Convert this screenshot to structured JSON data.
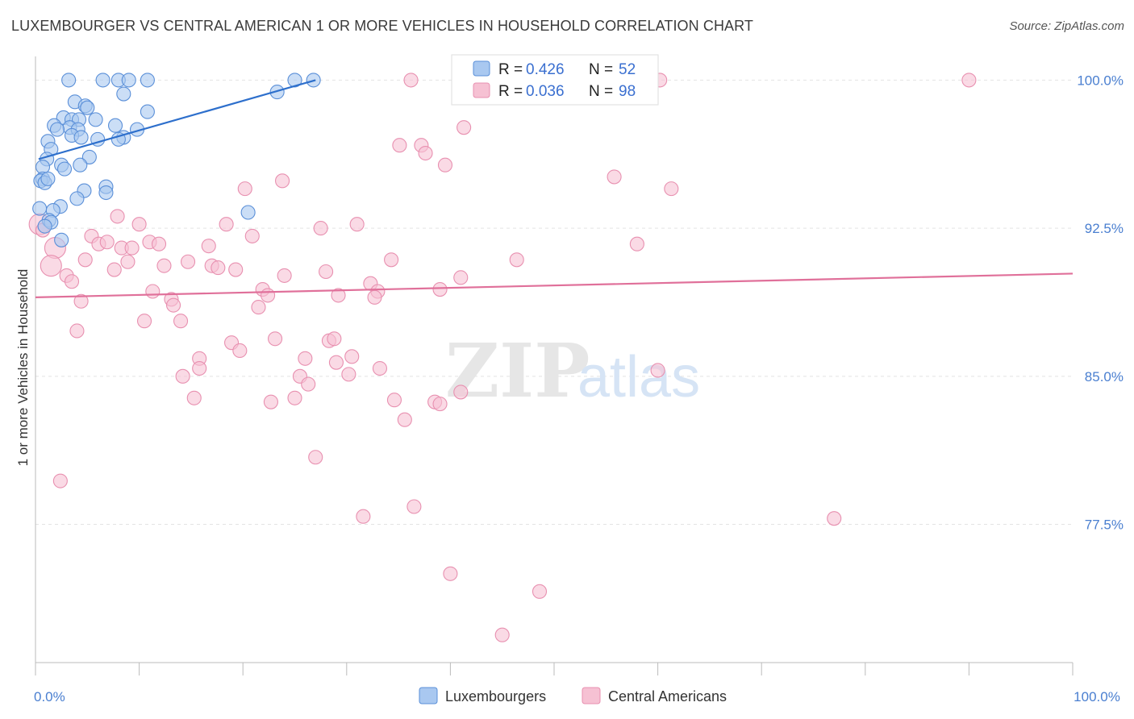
{
  "title": "LUXEMBOURGER VS CENTRAL AMERICAN 1 OR MORE VEHICLES IN HOUSEHOLD CORRELATION CHART",
  "source": "Source: ZipAtlas.com",
  "watermark": {
    "zip": "ZIP",
    "atlas": "atlas"
  },
  "colors": {
    "blue_fill": "#a9c8f0",
    "blue_stroke": "#5a8fd8",
    "blue_line": "#2d6fcc",
    "pink_fill": "#f6c1d3",
    "pink_stroke": "#e890b0",
    "pink_line": "#e0709a",
    "tick_text": "#4a7fd0",
    "grid": "#e4e4e4"
  },
  "legend": {
    "rows": [
      {
        "r_label": "R =",
        "r_value": "0.426",
        "n_label": "N =",
        "n_value": "52",
        "series": "Luxembourgers"
      },
      {
        "r_label": "R =",
        "r_value": "0.036",
        "n_label": "N =",
        "n_value": "98",
        "series": "Central Americans"
      }
    ]
  },
  "chart_data": {
    "type": "scatter",
    "title": "LUXEMBOURGER VS CENTRAL AMERICAN 1 OR MORE VEHICLES IN HOUSEHOLD CORRELATION CHART",
    "xlabel": "",
    "ylabel": "1 or more Vehicles in Household",
    "xlim": [
      0,
      100
    ],
    "ylim": [
      70.5,
      101.2
    ],
    "x_tick_labels": [
      {
        "value": 0,
        "label": "0.0%"
      },
      {
        "value": 100,
        "label": "100.0%"
      }
    ],
    "x_minor_ticks": [
      0,
      10,
      20,
      30,
      40,
      50,
      60,
      70,
      80,
      90,
      100
    ],
    "y_ticks": [
      {
        "value": 100,
        "label": "100.0%"
      },
      {
        "value": 92.5,
        "label": "92.5%"
      },
      {
        "value": 85,
        "label": "85.0%"
      },
      {
        "value": 77.5,
        "label": "77.5%"
      }
    ],
    "grid": true,
    "legend_position": "top-center",
    "series": [
      {
        "name": "Luxembourgers",
        "color": "#a9c8f0",
        "trend": {
          "x": [
            0.3,
            27
          ],
          "y": [
            96.0,
            100.0
          ]
        },
        "points": [
          {
            "x": 3.2,
            "y": 100,
            "s": 1
          },
          {
            "x": 6.5,
            "y": 100,
            "s": 1
          },
          {
            "x": 8.0,
            "y": 100,
            "s": 1
          },
          {
            "x": 9.0,
            "y": 100,
            "s": 1
          },
          {
            "x": 10.8,
            "y": 100,
            "s": 1
          },
          {
            "x": 25.0,
            "y": 100,
            "s": 1
          },
          {
            "x": 26.8,
            "y": 100,
            "s": 1
          },
          {
            "x": 8.5,
            "y": 99.3,
            "s": 1
          },
          {
            "x": 23.3,
            "y": 99.4,
            "s": 1
          },
          {
            "x": 3.8,
            "y": 98.9,
            "s": 1
          },
          {
            "x": 4.8,
            "y": 98.7,
            "s": 1
          },
          {
            "x": 5.0,
            "y": 98.6,
            "s": 1
          },
          {
            "x": 10.8,
            "y": 98.4,
            "s": 1
          },
          {
            "x": 2.7,
            "y": 98.1,
            "s": 1
          },
          {
            "x": 3.5,
            "y": 98.0,
            "s": 1
          },
          {
            "x": 4.2,
            "y": 98.0,
            "s": 1
          },
          {
            "x": 5.8,
            "y": 98.0,
            "s": 1
          },
          {
            "x": 1.8,
            "y": 97.7,
            "s": 1
          },
          {
            "x": 3.3,
            "y": 97.6,
            "s": 1
          },
          {
            "x": 7.7,
            "y": 97.7,
            "s": 1
          },
          {
            "x": 2.1,
            "y": 97.5,
            "s": 1
          },
          {
            "x": 4.1,
            "y": 97.5,
            "s": 1
          },
          {
            "x": 9.8,
            "y": 97.5,
            "s": 1
          },
          {
            "x": 3.5,
            "y": 97.2,
            "s": 1
          },
          {
            "x": 4.4,
            "y": 97.1,
            "s": 1
          },
          {
            "x": 6.0,
            "y": 97.0,
            "s": 1
          },
          {
            "x": 8.5,
            "y": 97.1,
            "s": 1
          },
          {
            "x": 8.0,
            "y": 97.0,
            "s": 1
          },
          {
            "x": 1.2,
            "y": 96.9,
            "s": 1
          },
          {
            "x": 1.5,
            "y": 96.5,
            "s": 1
          },
          {
            "x": 5.2,
            "y": 96.1,
            "s": 1
          },
          {
            "x": 1.1,
            "y": 96.0,
            "s": 1
          },
          {
            "x": 0.7,
            "y": 95.6,
            "s": 1
          },
          {
            "x": 2.5,
            "y": 95.7,
            "s": 1
          },
          {
            "x": 2.8,
            "y": 95.5,
            "s": 1
          },
          {
            "x": 4.3,
            "y": 95.7,
            "s": 1
          },
          {
            "x": 0.7,
            "y": 95.0,
            "s": 1
          },
          {
            "x": 0.5,
            "y": 94.9,
            "s": 1
          },
          {
            "x": 0.9,
            "y": 94.8,
            "s": 1
          },
          {
            "x": 1.2,
            "y": 95.0,
            "s": 1
          },
          {
            "x": 6.8,
            "y": 94.6,
            "s": 1
          },
          {
            "x": 4.7,
            "y": 94.4,
            "s": 1
          },
          {
            "x": 6.8,
            "y": 94.3,
            "s": 1
          },
          {
            "x": 4.0,
            "y": 94.0,
            "s": 1
          },
          {
            "x": 0.4,
            "y": 93.5,
            "s": 1
          },
          {
            "x": 2.4,
            "y": 93.6,
            "s": 1
          },
          {
            "x": 1.7,
            "y": 93.4,
            "s": 1
          },
          {
            "x": 20.5,
            "y": 93.3,
            "s": 1
          },
          {
            "x": 1.3,
            "y": 92.9,
            "s": 1
          },
          {
            "x": 1.5,
            "y": 92.8,
            "s": 1
          },
          {
            "x": 2.5,
            "y": 91.9,
            "s": 1
          },
          {
            "x": 0.9,
            "y": 92.6,
            "s": 1
          }
        ]
      },
      {
        "name": "Central Americans",
        "color": "#f6c1d3",
        "trend": {
          "x": [
            0,
            100
          ],
          "y": [
            89.0,
            90.2
          ]
        },
        "points": [
          {
            "x": 36.2,
            "y": 100,
            "s": 1
          },
          {
            "x": 47.4,
            "y": 100,
            "s": 1
          },
          {
            "x": 52.0,
            "y": 100,
            "s": 1
          },
          {
            "x": 60.2,
            "y": 100,
            "s": 1
          },
          {
            "x": 90.0,
            "y": 100,
            "s": 1
          },
          {
            "x": 41.3,
            "y": 97.6,
            "s": 1
          },
          {
            "x": 35.1,
            "y": 96.7,
            "s": 1
          },
          {
            "x": 37.2,
            "y": 96.7,
            "s": 1
          },
          {
            "x": 37.6,
            "y": 96.3,
            "s": 1
          },
          {
            "x": 39.5,
            "y": 95.7,
            "s": 1
          },
          {
            "x": 55.8,
            "y": 95.1,
            "s": 1
          },
          {
            "x": 23.8,
            "y": 94.9,
            "s": 1
          },
          {
            "x": 20.2,
            "y": 94.5,
            "s": 1
          },
          {
            "x": 61.3,
            "y": 94.5,
            "s": 1
          },
          {
            "x": 7.9,
            "y": 93.1,
            "s": 1
          },
          {
            "x": 0.4,
            "y": 92.7,
            "s": 2
          },
          {
            "x": 0.7,
            "y": 92.4,
            "s": 1
          },
          {
            "x": 10.0,
            "y": 92.7,
            "s": 1
          },
          {
            "x": 18.4,
            "y": 92.7,
            "s": 1
          },
          {
            "x": 27.5,
            "y": 92.5,
            "s": 1
          },
          {
            "x": 31.0,
            "y": 92.7,
            "s": 1
          },
          {
            "x": 20.9,
            "y": 92.1,
            "s": 1
          },
          {
            "x": 5.4,
            "y": 92.1,
            "s": 1
          },
          {
            "x": 6.1,
            "y": 91.7,
            "s": 1
          },
          {
            "x": 6.9,
            "y": 91.8,
            "s": 1
          },
          {
            "x": 11.0,
            "y": 91.8,
            "s": 1
          },
          {
            "x": 11.9,
            "y": 91.7,
            "s": 1
          },
          {
            "x": 16.7,
            "y": 91.6,
            "s": 1
          },
          {
            "x": 1.9,
            "y": 91.5,
            "s": 2
          },
          {
            "x": 8.3,
            "y": 91.5,
            "s": 1
          },
          {
            "x": 9.3,
            "y": 91.5,
            "s": 1
          },
          {
            "x": 58.0,
            "y": 91.7,
            "s": 1
          },
          {
            "x": 4.8,
            "y": 90.9,
            "s": 1
          },
          {
            "x": 8.9,
            "y": 90.8,
            "s": 1
          },
          {
            "x": 12.4,
            "y": 90.6,
            "s": 1
          },
          {
            "x": 14.7,
            "y": 90.8,
            "s": 1
          },
          {
            "x": 17.0,
            "y": 90.6,
            "s": 1
          },
          {
            "x": 17.6,
            "y": 90.5,
            "s": 1
          },
          {
            "x": 19.3,
            "y": 90.4,
            "s": 1
          },
          {
            "x": 34.3,
            "y": 90.9,
            "s": 1
          },
          {
            "x": 46.4,
            "y": 90.9,
            "s": 1
          },
          {
            "x": 1.5,
            "y": 90.6,
            "s": 2
          },
          {
            "x": 7.6,
            "y": 90.4,
            "s": 1
          },
          {
            "x": 28.0,
            "y": 90.3,
            "s": 1
          },
          {
            "x": 3.0,
            "y": 90.1,
            "s": 1
          },
          {
            "x": 24.0,
            "y": 90.1,
            "s": 1
          },
          {
            "x": 41.0,
            "y": 90.0,
            "s": 1
          },
          {
            "x": 3.5,
            "y": 89.8,
            "s": 1
          },
          {
            "x": 32.3,
            "y": 89.7,
            "s": 1
          },
          {
            "x": 11.3,
            "y": 89.3,
            "s": 1
          },
          {
            "x": 21.9,
            "y": 89.4,
            "s": 1
          },
          {
            "x": 33.0,
            "y": 89.3,
            "s": 1
          },
          {
            "x": 39.0,
            "y": 89.4,
            "s": 1
          },
          {
            "x": 22.4,
            "y": 89.1,
            "s": 1
          },
          {
            "x": 29.2,
            "y": 89.1,
            "s": 1
          },
          {
            "x": 32.7,
            "y": 89.0,
            "s": 1
          },
          {
            "x": 4.4,
            "y": 88.8,
            "s": 1
          },
          {
            "x": 13.1,
            "y": 88.9,
            "s": 1
          },
          {
            "x": 13.3,
            "y": 88.6,
            "s": 1
          },
          {
            "x": 21.5,
            "y": 88.5,
            "s": 1
          },
          {
            "x": 10.5,
            "y": 87.8,
            "s": 1
          },
          {
            "x": 14.0,
            "y": 87.8,
            "s": 1
          },
          {
            "x": 4.0,
            "y": 87.3,
            "s": 1
          },
          {
            "x": 23.1,
            "y": 86.9,
            "s": 1
          },
          {
            "x": 28.3,
            "y": 86.8,
            "s": 1
          },
          {
            "x": 28.8,
            "y": 86.9,
            "s": 1
          },
          {
            "x": 18.9,
            "y": 86.7,
            "s": 1
          },
          {
            "x": 19.7,
            "y": 86.3,
            "s": 1
          },
          {
            "x": 15.8,
            "y": 85.9,
            "s": 1
          },
          {
            "x": 26.0,
            "y": 85.9,
            "s": 1
          },
          {
            "x": 30.5,
            "y": 86.0,
            "s": 1
          },
          {
            "x": 29.0,
            "y": 85.7,
            "s": 1
          },
          {
            "x": 15.8,
            "y": 85.4,
            "s": 1
          },
          {
            "x": 33.2,
            "y": 85.4,
            "s": 1
          },
          {
            "x": 60.0,
            "y": 85.3,
            "s": 1
          },
          {
            "x": 14.2,
            "y": 85.0,
            "s": 1
          },
          {
            "x": 25.5,
            "y": 85.0,
            "s": 1
          },
          {
            "x": 30.2,
            "y": 85.1,
            "s": 1
          },
          {
            "x": 26.3,
            "y": 84.6,
            "s": 1
          },
          {
            "x": 41.0,
            "y": 84.2,
            "s": 1
          },
          {
            "x": 15.3,
            "y": 83.9,
            "s": 1
          },
          {
            "x": 22.7,
            "y": 83.7,
            "s": 1
          },
          {
            "x": 25.0,
            "y": 83.9,
            "s": 1
          },
          {
            "x": 34.6,
            "y": 83.8,
            "s": 1
          },
          {
            "x": 38.5,
            "y": 83.7,
            "s": 1
          },
          {
            "x": 39.0,
            "y": 83.6,
            "s": 1
          },
          {
            "x": 35.6,
            "y": 82.8,
            "s": 1
          },
          {
            "x": 27.0,
            "y": 80.9,
            "s": 1
          },
          {
            "x": 2.4,
            "y": 79.7,
            "s": 1
          },
          {
            "x": 36.5,
            "y": 78.4,
            "s": 1
          },
          {
            "x": 31.6,
            "y": 77.9,
            "s": 1
          },
          {
            "x": 77.0,
            "y": 77.8,
            "s": 1
          },
          {
            "x": 40.0,
            "y": 75.0,
            "s": 1
          },
          {
            "x": 48.6,
            "y": 74.1,
            "s": 1
          },
          {
            "x": 45.0,
            "y": 71.9,
            "s": 1
          }
        ]
      }
    ]
  }
}
